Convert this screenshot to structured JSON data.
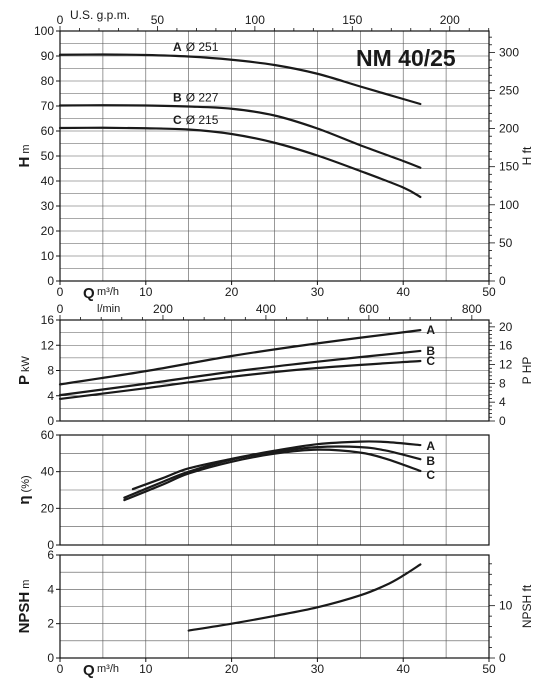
{
  "chart_data": [
    {
      "id": "head",
      "type": "line",
      "model_label": "NM 40/25",
      "ylabel": "H",
      "ylabel_unit": "m",
      "ylim": [
        0,
        100
      ],
      "y_ticks": [
        0,
        10,
        20,
        30,
        40,
        50,
        60,
        70,
        80,
        90,
        100
      ],
      "xlim": [
        0,
        50
      ],
      "x_ticks": [
        0,
        10,
        20,
        30,
        40,
        50
      ],
      "xlabel": "Q",
      "xlabel_unit": "m³/h",
      "top_axis_label": "U.S. g.p.m.",
      "top_axis_ticks": [
        0,
        50,
        100,
        150,
        200
      ],
      "top_axis_gpm_per_m3h": 4.4029,
      "right_axis_label": "H ft",
      "right_axis_ticks": [
        0,
        50,
        100,
        150,
        200,
        250,
        300
      ],
      "right_axis_ft_per_m": 3.2808,
      "series": [
        {
          "name": "A",
          "curve_label": "Ø 251",
          "x": [
            0,
            5,
            10,
            15,
            20,
            25,
            30,
            35,
            40,
            42
          ],
          "values": [
            90.5,
            90.6,
            90.4,
            89.8,
            88.5,
            86.4,
            82.9,
            77.8,
            72.8,
            70.8
          ]
        },
        {
          "name": "B",
          "curve_label": "Ø 227",
          "x": [
            0,
            5,
            10,
            15,
            20,
            25,
            30,
            35,
            40,
            42
          ],
          "values": [
            70.2,
            70.3,
            70.2,
            69.8,
            68.9,
            66.2,
            61.0,
            54.3,
            48.0,
            45.3
          ]
        },
        {
          "name": "C",
          "curve_label": "Ø 215",
          "x": [
            0,
            5,
            10,
            15,
            20,
            25,
            30,
            35,
            40,
            42
          ],
          "values": [
            61.2,
            61.3,
            61.1,
            60.6,
            58.8,
            55.3,
            50.2,
            44.0,
            37.4,
            33.6
          ]
        }
      ]
    },
    {
      "id": "power",
      "type": "line",
      "ylabel": "P",
      "ylabel_unit": "kW",
      "ylim": [
        0,
        16
      ],
      "y_ticks": [
        0,
        4,
        8,
        12,
        16
      ],
      "xlim": [
        0,
        50
      ],
      "top_axis_label": "l/min",
      "top_axis_ticks": [
        0,
        200,
        400,
        600,
        800
      ],
      "top_axis_lmin_per_m3h": 16.667,
      "right_axis_label": "P HP",
      "right_axis_ticks": [
        0,
        4,
        8,
        12,
        16,
        20
      ],
      "right_axis_hp_per_kw": 1.341,
      "series": [
        {
          "name": "A",
          "x": [
            0,
            10,
            20,
            30,
            42
          ],
          "values": [
            5.8,
            7.9,
            10.3,
            12.3,
            14.4
          ]
        },
        {
          "name": "B",
          "x": [
            0,
            10,
            20,
            30,
            42
          ],
          "values": [
            4.1,
            5.9,
            7.8,
            9.4,
            11.1
          ]
        },
        {
          "name": "C",
          "x": [
            0,
            10,
            20,
            30,
            42
          ],
          "values": [
            3.5,
            5.2,
            7.0,
            8.4,
            9.5
          ]
        }
      ]
    },
    {
      "id": "efficiency",
      "type": "line",
      "ylabel": "η",
      "ylabel_unit": "(%)",
      "ylim": [
        0,
        60
      ],
      "y_ticks": [
        0,
        20,
        40,
        60
      ],
      "xlim": [
        0,
        50
      ],
      "series": [
        {
          "name": "A",
          "x": [
            8.5,
            12,
            15,
            20,
            25,
            30,
            35,
            38,
            42
          ],
          "values": [
            30.5,
            36.5,
            41.8,
            47.0,
            51.4,
            55.0,
            56.4,
            56.2,
            54.5
          ]
        },
        {
          "name": "B",
          "x": [
            7.5,
            12,
            15,
            20,
            25,
            30,
            35,
            38,
            42
          ],
          "values": [
            25.8,
            34.5,
            40.0,
            46.6,
            50.8,
            53.4,
            53.4,
            51.5,
            46.8
          ]
        },
        {
          "name": "C",
          "x": [
            7.5,
            12,
            15,
            20,
            25,
            30,
            35,
            38,
            42
          ],
          "values": [
            24.5,
            33.0,
            39.0,
            45.4,
            49.8,
            52.0,
            50.4,
            47.0,
            40.4
          ]
        }
      ]
    },
    {
      "id": "npsh",
      "type": "line",
      "ylabel": "NPSH",
      "ylabel_unit": "m",
      "ylim": [
        0,
        6
      ],
      "y_ticks": [
        0,
        2,
        4,
        6
      ],
      "xlim": [
        0,
        50
      ],
      "x_ticks": [
        0,
        10,
        20,
        30,
        40,
        50
      ],
      "xlabel": "Q",
      "xlabel_unit": "m³/h",
      "right_axis_label": "NPSH ft",
      "right_axis_ticks": [
        0,
        10
      ],
      "right_axis_ft_per_m": 3.2808,
      "series": [
        {
          "name": "NPSH",
          "x": [
            15,
            20,
            25,
            30,
            35,
            38,
            40,
            42
          ],
          "values": [
            1.6,
            2.0,
            2.45,
            2.95,
            3.65,
            4.25,
            4.8,
            5.45
          ]
        }
      ]
    }
  ]
}
